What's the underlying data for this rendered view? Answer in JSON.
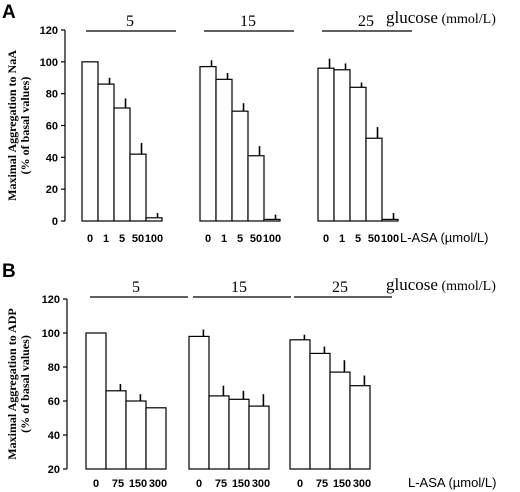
{
  "chart_data": [
    {
      "type": "bar",
      "panel": "A",
      "ylabel": "Maximal Aggregation to NaA",
      "ylabel2": "(% of basal values)",
      "xlabel": "L-ASA (µmol/L)",
      "group_title": "glucose",
      "group_unit": "(mmol/L)",
      "ylim": [
        0,
        120
      ],
      "yticks": [
        0,
        20,
        40,
        60,
        80,
        100,
        120
      ],
      "categories": [
        "0",
        "1",
        "5",
        "50",
        "100"
      ],
      "groups": [
        {
          "label": "5",
          "values": [
            100,
            86,
            71,
            42,
            2
          ],
          "errors": [
            0,
            4,
            6,
            7,
            3
          ]
        },
        {
          "label": "15",
          "values": [
            97,
            89,
            69,
            41,
            1
          ],
          "errors": [
            4,
            4,
            5,
            6,
            3
          ]
        },
        {
          "label": "25",
          "values": [
            96,
            95,
            84,
            52,
            1
          ],
          "errors": [
            6,
            4,
            3,
            7,
            4
          ]
        }
      ]
    },
    {
      "type": "bar",
      "panel": "B",
      "ylabel": "Maximal Aggregation to ADP",
      "ylabel2": "(% of basal values)",
      "xlabel": "L-ASA (µmol/L)",
      "group_title": "glucose",
      "group_unit": "(mmol/L)",
      "ylim": [
        20,
        120
      ],
      "yticks": [
        20,
        40,
        60,
        80,
        100,
        120
      ],
      "categories": [
        "0",
        "75",
        "150",
        "300"
      ],
      "groups": [
        {
          "label": "5",
          "values": [
            100,
            66,
            60,
            56
          ],
          "errors": [
            0,
            4,
            4,
            0
          ]
        },
        {
          "label": "15",
          "values": [
            98,
            63,
            61,
            57
          ],
          "errors": [
            4,
            6,
            5,
            7
          ]
        },
        {
          "label": "25",
          "values": [
            96,
            88,
            77,
            69
          ],
          "errors": [
            3,
            4,
            7,
            6
          ]
        }
      ]
    }
  ]
}
